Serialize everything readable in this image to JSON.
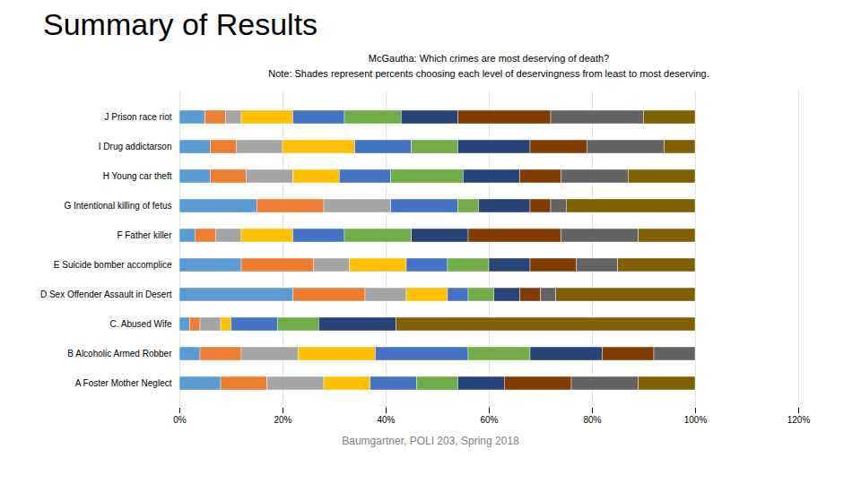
{
  "chart_data": {
    "type": "bar",
    "orientation": "horizontal",
    "stacked": true,
    "title": "Summary of Results",
    "subtitle": [
      "McGautha: Which crimes are most deserving of death?",
      "Note: Shades represent percents choosing each level of deservingness from least to most deserving."
    ],
    "caption": "Baumgartner, POLI 203, Spring 2018",
    "categories": [
      "J Prison race riot",
      "I Drug addictarson",
      "H Young car theft",
      "G Intentional killing of fetus",
      "F Father killer",
      "E Suicide bomber accomplice",
      "D Sex Offender Assault in Desert",
      "C. Abused Wife",
      "B Alcoholic Armed Robber",
      "A Foster Mother Neglect"
    ],
    "series": [
      {
        "color": "#5B9BD5",
        "values": [
          5,
          6,
          6,
          15,
          3,
          12,
          22,
          2,
          4,
          8
        ]
      },
      {
        "color": "#ED7D31",
        "values": [
          4,
          5,
          7,
          13,
          4,
          14,
          14,
          2,
          8,
          9
        ]
      },
      {
        "color": "#A5A5A5",
        "values": [
          3,
          9,
          9,
          13,
          5,
          7,
          8,
          4,
          11,
          11
        ]
      },
      {
        "color": "#FFC000",
        "values": [
          10,
          14,
          9,
          0,
          10,
          11,
          8,
          2,
          15,
          9
        ]
      },
      {
        "color": "#4472C4",
        "values": [
          10,
          11,
          10,
          13,
          10,
          8,
          4,
          9,
          18,
          9
        ]
      },
      {
        "color": "#70AD47",
        "values": [
          11,
          9,
          14,
          4,
          13,
          8,
          5,
          8,
          12,
          8
        ]
      },
      {
        "color": "#264478",
        "values": [
          11,
          14,
          11,
          10,
          11,
          8,
          5,
          15,
          14,
          9
        ]
      },
      {
        "color": "#833C00",
        "values": [
          18,
          11,
          8,
          4,
          18,
          9,
          4,
          0,
          10,
          13
        ]
      },
      {
        "color": "#636363",
        "values": [
          18,
          15,
          13,
          3,
          15,
          8,
          3,
          0,
          8,
          13
        ]
      },
      {
        "color": "#806000",
        "values": [
          10,
          6,
          13,
          25,
          11,
          15,
          27,
          58,
          0,
          11
        ]
      }
    ],
    "xlim": [
      0,
      120
    ],
    "xticks": [
      {
        "value": 0,
        "label": "0%"
      },
      {
        "value": 20,
        "label": "20%"
      },
      {
        "value": 40,
        "label": "40%"
      },
      {
        "value": 60,
        "label": "60%"
      },
      {
        "value": 80,
        "label": "80%"
      },
      {
        "value": 100,
        "label": "100%"
      },
      {
        "value": 120,
        "label": "120%"
      }
    ],
    "grid": true
  }
}
